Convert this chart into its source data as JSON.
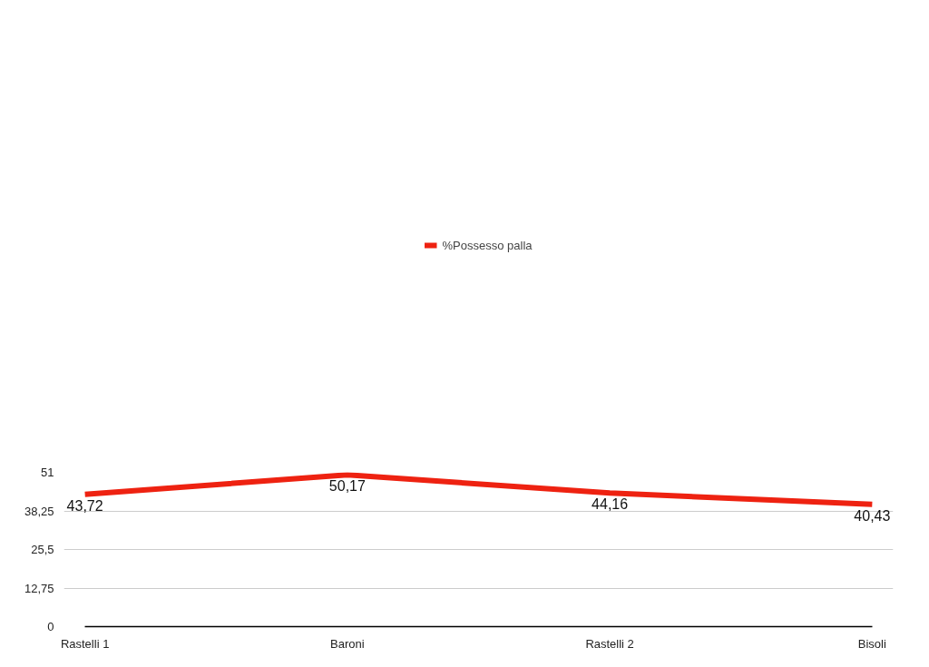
{
  "chart_data": {
    "type": "line",
    "categories": [
      "Rastelli 1",
      "Baroni",
      "Rastelli 2",
      "Bisoli"
    ],
    "series": [
      {
        "name": "%Possesso palla",
        "color": "#ee2211",
        "values": [
          43.72,
          50.17,
          44.16,
          40.43
        ],
        "value_labels": [
          "43,72",
          "50,17",
          "44,16",
          "40,43"
        ]
      }
    ],
    "ylim": [
      0,
      51
    ],
    "yticks": [
      0,
      {
        "value": 12.75,
        "label": "12,75"
      },
      {
        "value": 25.5,
        "label": "25,5"
      },
      {
        "value": 38.25,
        "label": "38,25"
      },
      51
    ],
    "grid": "y",
    "legend": "top",
    "marker": "none",
    "line_style": "solid"
  }
}
